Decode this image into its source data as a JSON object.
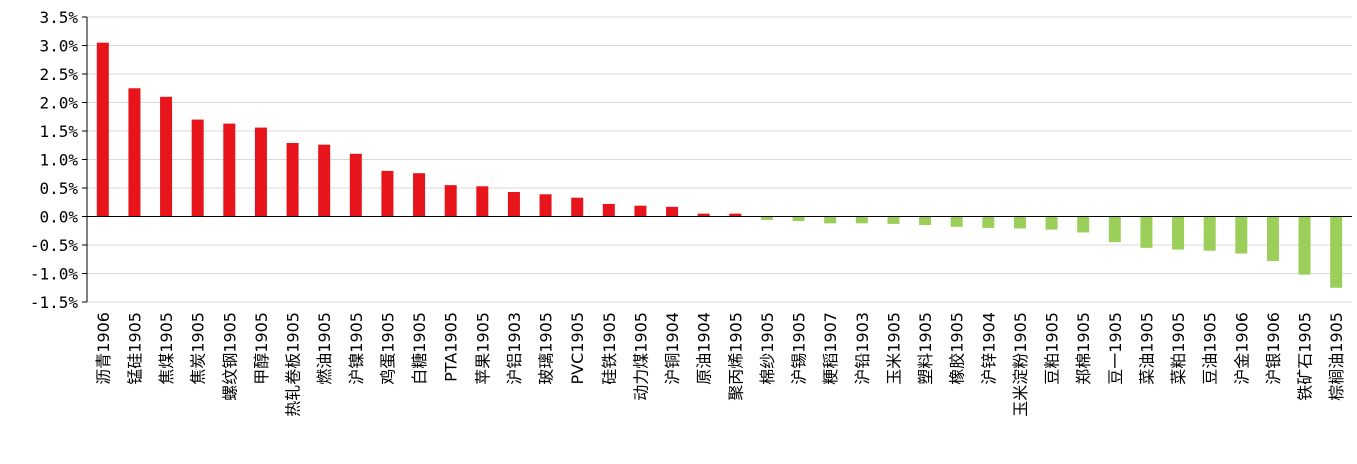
{
  "chart_data": {
    "type": "bar",
    "title": "",
    "xlabel": "",
    "ylabel": "",
    "ylim": [
      -1.5,
      3.5
    ],
    "y_ticks": [
      "3.5%",
      "3.0%",
      "2.5%",
      "2.0%",
      "1.5%",
      "1.0%",
      "0.5%",
      "0.0%",
      "-0.5%",
      "-1.0%",
      "-1.5%"
    ],
    "y_tick_values": [
      3.5,
      3.0,
      2.5,
      2.0,
      1.5,
      1.0,
      0.5,
      0.0,
      -0.5,
      -1.0,
      -1.5
    ],
    "grid": true,
    "legend": "none",
    "colors": {
      "positive": "#e8141b",
      "negative": "#9bcf5a",
      "grid": "#d9d9d9",
      "axis": "#000000"
    },
    "categories": [
      "沥青1906",
      "锰硅1905",
      "焦煤1905",
      "焦炭1905",
      "螺纹钢1905",
      "甲醇1905",
      "热轧卷板1905",
      "燃油1905",
      "沪镍1905",
      "鸡蛋1905",
      "白糖1905",
      "PTA1905",
      "苹果1905",
      "沪铝1903",
      "玻璃1905",
      "PVC1905",
      "硅铁1905",
      "动力煤1905",
      "沪铜1904",
      "原油1904",
      "聚丙烯1905",
      "棉纱1905",
      "沪锡1905",
      "粳稻1907",
      "沪铅1903",
      "玉米1905",
      "塑料1905",
      "橡胶1905",
      "沪锌1904",
      "玉米淀粉1905",
      "豆粕1905",
      "郑棉1905",
      "豆一1905",
      "菜油1905",
      "菜粕1905",
      "豆油1905",
      "沪金1906",
      "沪银1906",
      "铁矿石1905",
      "棕榈油1905"
    ],
    "values": [
      3.05,
      2.25,
      2.1,
      1.7,
      1.63,
      1.56,
      1.29,
      1.26,
      1.1,
      0.8,
      0.76,
      0.55,
      0.53,
      0.43,
      0.39,
      0.33,
      0.22,
      0.19,
      0.17,
      0.05,
      0.05,
      -0.06,
      -0.08,
      -0.12,
      -0.12,
      -0.13,
      -0.15,
      -0.18,
      -0.2,
      -0.21,
      -0.23,
      -0.28,
      -0.45,
      -0.55,
      -0.58,
      -0.6,
      -0.65,
      -0.78,
      -1.02,
      -1.25
    ]
  }
}
